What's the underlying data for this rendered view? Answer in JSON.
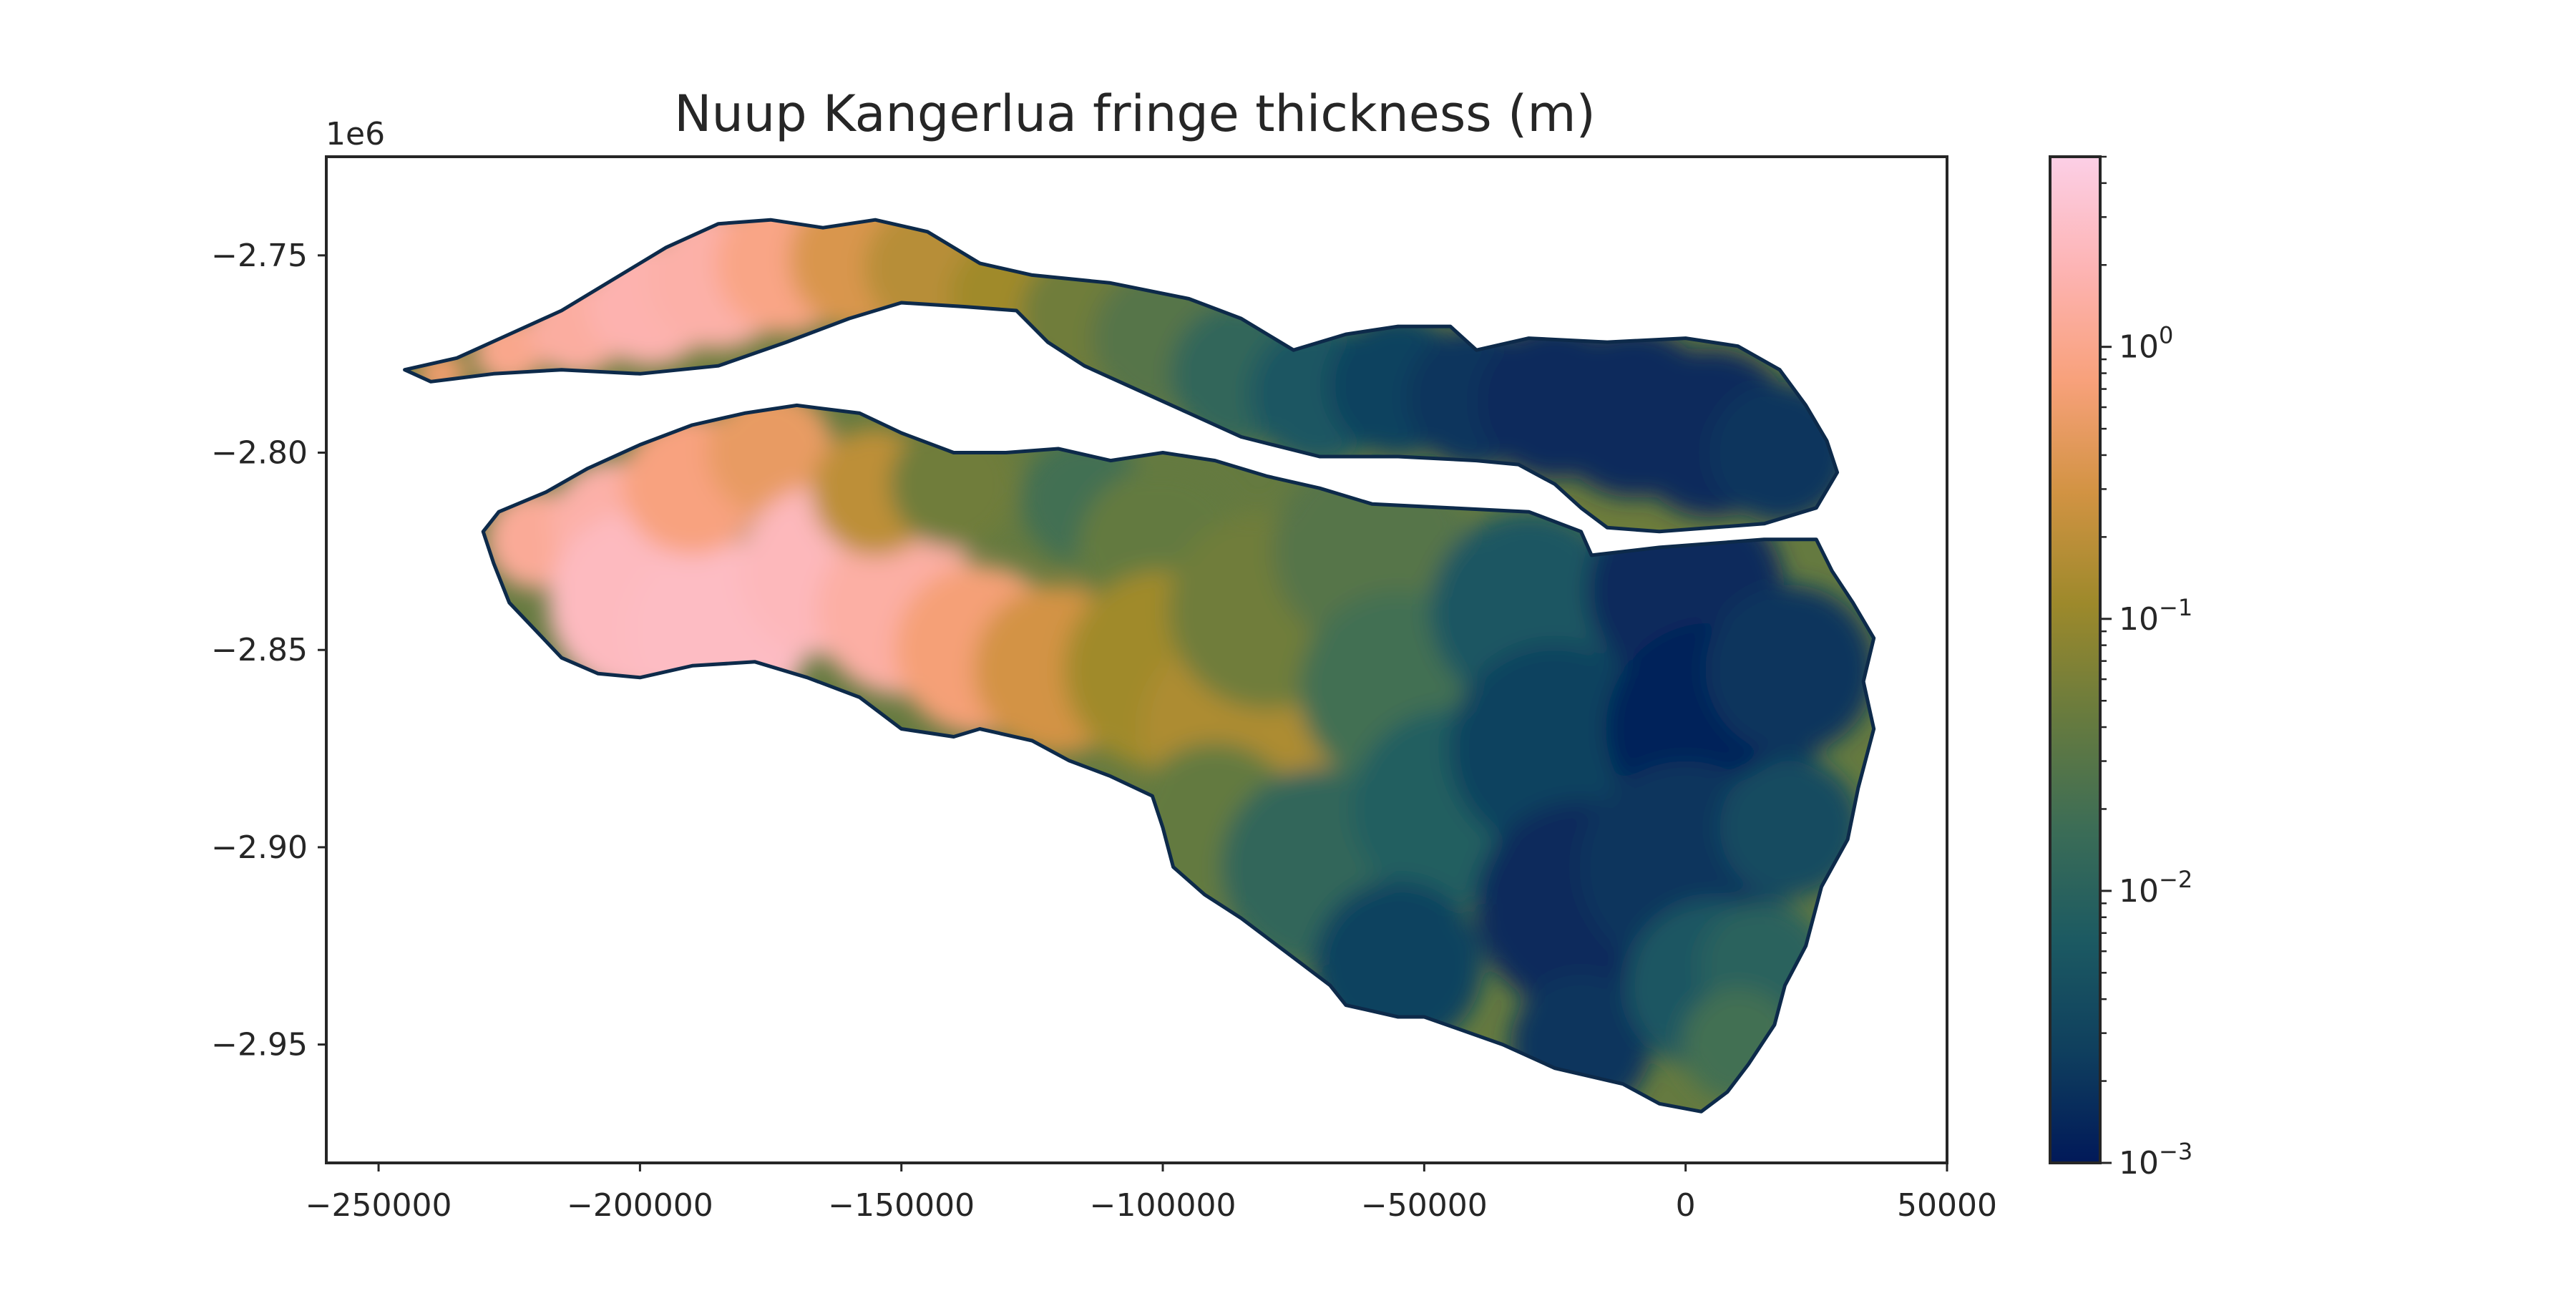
{
  "chart_data": {
    "type": "heatmap",
    "title": "Nuup Kangerlua fringe thickness (m)",
    "xlabel": "",
    "ylabel": "",
    "xlim": [
      -260000,
      50000
    ],
    "ylim": [
      -2980000,
      -2725000
    ],
    "y_offset_label": "1e6",
    "x_ticks": [
      {
        "value": -250000,
        "label": "−250000"
      },
      {
        "value": -200000,
        "label": "−200000"
      },
      {
        "value": -150000,
        "label": "−150000"
      },
      {
        "value": -100000,
        "label": "−100000"
      },
      {
        "value": -50000,
        "label": "−50000"
      },
      {
        "value": 0,
        "label": "0"
      },
      {
        "value": 50000,
        "label": "50000"
      }
    ],
    "y_ticks": [
      {
        "value": -2750000,
        "label": "−2.75"
      },
      {
        "value": -2800000,
        "label": "−2.80"
      },
      {
        "value": -2850000,
        "label": "−2.85"
      },
      {
        "value": -2900000,
        "label": "−2.90"
      },
      {
        "value": -2950000,
        "label": "−2.95"
      }
    ],
    "grid": false,
    "colorbar": {
      "scale": "log",
      "range": [
        0.001,
        5
      ],
      "ticks": [
        {
          "value": 0.001,
          "base": "10",
          "exp": "−3"
        },
        {
          "value": 0.01,
          "base": "10",
          "exp": "−2"
        },
        {
          "value": 0.1,
          "base": "10",
          "exp": "−1"
        },
        {
          "value": 1,
          "base": "10",
          "exp": "0"
        }
      ],
      "colormap": "batlow",
      "colors": [
        "#011959",
        "#0f3f5e",
        "#1c5a62",
        "#3c6d56",
        "#687b3e",
        "#9d892b",
        "#d29343",
        "#f8a17b",
        "#fdb4b4",
        "#fccfe6"
      ]
    },
    "regions": [
      {
        "name": "northern-branch",
        "outline": [
          [
            -245000,
            -2779000
          ],
          [
            -235000,
            -2776000
          ],
          [
            -225000,
            -2770000
          ],
          [
            -215000,
            -2764000
          ],
          [
            -205000,
            -2756000
          ],
          [
            -195000,
            -2748000
          ],
          [
            -185000,
            -2742000
          ],
          [
            -175000,
            -2741000
          ],
          [
            -165000,
            -2743000
          ],
          [
            -155000,
            -2741000
          ],
          [
            -145000,
            -2744000
          ],
          [
            -135000,
            -2752000
          ],
          [
            -125000,
            -2755000
          ],
          [
            -110000,
            -2757000
          ],
          [
            -95000,
            -2761000
          ],
          [
            -85000,
            -2766000
          ],
          [
            -75000,
            -2774000
          ],
          [
            -65000,
            -2770000
          ],
          [
            -55000,
            -2768000
          ],
          [
            -45000,
            -2768000
          ],
          [
            -40000,
            -2774000
          ],
          [
            -30000,
            -2771000
          ],
          [
            -15000,
            -2772000
          ],
          [
            0,
            -2771000
          ],
          [
            10000,
            -2773000
          ],
          [
            18000,
            -2779000
          ],
          [
            23000,
            -2788000
          ],
          [
            27000,
            -2797000
          ],
          [
            29000,
            -2805000
          ],
          [
            25000,
            -2814000
          ],
          [
            15000,
            -2818000
          ],
          [
            5000,
            -2819000
          ],
          [
            -5000,
            -2820000
          ],
          [
            -15000,
            -2819000
          ],
          [
            -20000,
            -2814000
          ],
          [
            -25000,
            -2808000
          ],
          [
            -32000,
            -2803000
          ],
          [
            -40000,
            -2802000
          ],
          [
            -55000,
            -2801000
          ],
          [
            -70000,
            -2801000
          ],
          [
            -85000,
            -2796000
          ],
          [
            -95000,
            -2790000
          ],
          [
            -105000,
            -2784000
          ],
          [
            -115000,
            -2778000
          ],
          [
            -122000,
            -2772000
          ],
          [
            -128000,
            -2764000
          ],
          [
            -138000,
            -2763000
          ],
          [
            -150000,
            -2762000
          ],
          [
            -160000,
            -2766000
          ],
          [
            -172000,
            -2772000
          ],
          [
            -185000,
            -2778000
          ],
          [
            -200000,
            -2780000
          ],
          [
            -215000,
            -2779000
          ],
          [
            -228000,
            -2780000
          ],
          [
            -240000,
            -2782000
          ]
        ],
        "samples": [
          {
            "x": -238000,
            "y": -2780000,
            "v": 0.6,
            "r": 3500
          },
          {
            "x": -225000,
            "y": -2774000,
            "v": 1.0,
            "r": 5000
          },
          {
            "x": -212000,
            "y": -2768000,
            "v": 1.4,
            "r": 7000
          },
          {
            "x": -198000,
            "y": -2762000,
            "v": 1.8,
            "r": 9000
          },
          {
            "x": -185000,
            "y": -2756000,
            "v": 1.6,
            "r": 10000
          },
          {
            "x": -172000,
            "y": -2752000,
            "v": 0.9,
            "r": 10000
          },
          {
            "x": -158000,
            "y": -2751000,
            "v": 0.35,
            "r": 10000
          },
          {
            "x": -145000,
            "y": -2753000,
            "v": 0.18,
            "r": 9000
          },
          {
            "x": -130000,
            "y": -2760000,
            "v": 0.12,
            "r": 8000
          },
          {
            "x": -115000,
            "y": -2765000,
            "v": 0.05,
            "r": 9000
          },
          {
            "x": -100000,
            "y": -2771000,
            "v": 0.03,
            "r": 10000
          },
          {
            "x": -85000,
            "y": -2780000,
            "v": 0.012,
            "r": 10000
          },
          {
            "x": -70000,
            "y": -2785000,
            "v": 0.006,
            "r": 10000
          },
          {
            "x": -55000,
            "y": -2783000,
            "v": 0.003,
            "r": 10000
          },
          {
            "x": -40000,
            "y": -2786000,
            "v": 0.002,
            "r": 10000
          },
          {
            "x": -25000,
            "y": -2787000,
            "v": 0.0015,
            "r": 11000
          },
          {
            "x": -10000,
            "y": -2790000,
            "v": 0.0015,
            "r": 12000
          },
          {
            "x": 5000,
            "y": -2795000,
            "v": 0.0015,
            "r": 12000
          },
          {
            "x": 18000,
            "y": -2800000,
            "v": 0.002,
            "r": 10000
          }
        ]
      },
      {
        "name": "southern-branch",
        "outline": [
          [
            -227000,
            -2815000
          ],
          [
            -218000,
            -2810000
          ],
          [
            -210000,
            -2804000
          ],
          [
            -200000,
            -2798000
          ],
          [
            -190000,
            -2793000
          ],
          [
            -180000,
            -2790000
          ],
          [
            -170000,
            -2788000
          ],
          [
            -158000,
            -2790000
          ],
          [
            -150000,
            -2795000
          ],
          [
            -140000,
            -2800000
          ],
          [
            -130000,
            -2800000
          ],
          [
            -120000,
            -2799000
          ],
          [
            -110000,
            -2802000
          ],
          [
            -100000,
            -2800000
          ],
          [
            -90000,
            -2802000
          ],
          [
            -80000,
            -2806000
          ],
          [
            -70000,
            -2809000
          ],
          [
            -60000,
            -2813000
          ],
          [
            -45000,
            -2814000
          ],
          [
            -30000,
            -2815000
          ],
          [
            -20000,
            -2820000
          ],
          [
            -18000,
            -2826000
          ],
          [
            -5000,
            -2824000
          ],
          [
            15000,
            -2822000
          ],
          [
            25000,
            -2822000
          ],
          [
            28000,
            -2830000
          ],
          [
            32000,
            -2838000
          ],
          [
            36000,
            -2847000
          ],
          [
            34000,
            -2858000
          ],
          [
            36000,
            -2870000
          ],
          [
            33000,
            -2885000
          ],
          [
            31000,
            -2898000
          ],
          [
            26000,
            -2910000
          ],
          [
            23000,
            -2925000
          ],
          [
            19000,
            -2935000
          ],
          [
            17000,
            -2945000
          ],
          [
            12000,
            -2955000
          ],
          [
            8000,
            -2962000
          ],
          [
            3000,
            -2967000
          ],
          [
            -5000,
            -2965000
          ],
          [
            -12000,
            -2960000
          ],
          [
            -25000,
            -2956000
          ],
          [
            -35000,
            -2950000
          ],
          [
            -50000,
            -2943000
          ],
          [
            -55000,
            -2943000
          ],
          [
            -65000,
            -2940000
          ],
          [
            -68000,
            -2935000
          ],
          [
            -75000,
            -2928000
          ],
          [
            -85000,
            -2918000
          ],
          [
            -92000,
            -2912000
          ],
          [
            -98000,
            -2905000
          ],
          [
            -100000,
            -2895000
          ],
          [
            -102000,
            -2887000
          ],
          [
            -110000,
            -2882000
          ],
          [
            -118000,
            -2878000
          ],
          [
            -125000,
            -2873000
          ],
          [
            -135000,
            -2870000
          ],
          [
            -140000,
            -2872000
          ],
          [
            -150000,
            -2870000
          ],
          [
            -158000,
            -2862000
          ],
          [
            -168000,
            -2857000
          ],
          [
            -178000,
            -2853000
          ],
          [
            -190000,
            -2854000
          ],
          [
            -200000,
            -2857000
          ],
          [
            -208000,
            -2856000
          ],
          [
            -215000,
            -2852000
          ],
          [
            -220000,
            -2845000
          ],
          [
            -225000,
            -2838000
          ],
          [
            -228000,
            -2828000
          ],
          [
            -230000,
            -2820000
          ]
        ],
        "samples": [
          {
            "x": -220000,
            "y": -2822000,
            "v": 1.2,
            "r": 7000
          },
          {
            "x": -205000,
            "y": -2818000,
            "v": 1.6,
            "r": 9000
          },
          {
            "x": -200000,
            "y": -2838000,
            "v": 2.4,
            "r": 13000
          },
          {
            "x": -185000,
            "y": -2845000,
            "v": 2.6,
            "r": 13000
          },
          {
            "x": -190000,
            "y": -2808000,
            "v": 0.8,
            "r": 10000
          },
          {
            "x": -175000,
            "y": -2800000,
            "v": 0.5,
            "r": 9000
          },
          {
            "x": -165000,
            "y": -2830000,
            "v": 2.2,
            "r": 12000
          },
          {
            "x": -150000,
            "y": -2840000,
            "v": 1.5,
            "r": 12000
          },
          {
            "x": -155000,
            "y": -2810000,
            "v": 0.2,
            "r": 9000
          },
          {
            "x": -140000,
            "y": -2808000,
            "v": 0.05,
            "r": 9000
          },
          {
            "x": -135000,
            "y": -2850000,
            "v": 0.7,
            "r": 12000
          },
          {
            "x": -120000,
            "y": -2855000,
            "v": 0.3,
            "r": 12000
          },
          {
            "x": -115000,
            "y": -2812000,
            "v": 0.02,
            "r": 9000
          },
          {
            "x": -100000,
            "y": -2825000,
            "v": 0.04,
            "r": 12000
          },
          {
            "x": -100000,
            "y": -2855000,
            "v": 0.12,
            "r": 14000
          },
          {
            "x": -85000,
            "y": -2870000,
            "v": 0.15,
            "r": 14000
          },
          {
            "x": -80000,
            "y": -2840000,
            "v": 0.05,
            "r": 14000
          },
          {
            "x": -90000,
            "y": -2895000,
            "v": 0.04,
            "r": 12000
          },
          {
            "x": -70000,
            "y": -2905000,
            "v": 0.012,
            "r": 14000
          },
          {
            "x": -60000,
            "y": -2825000,
            "v": 0.03,
            "r": 14000
          },
          {
            "x": -55000,
            "y": -2860000,
            "v": 0.02,
            "r": 14000
          },
          {
            "x": -45000,
            "y": -2890000,
            "v": 0.008,
            "r": 14000
          },
          {
            "x": -55000,
            "y": -2930000,
            "v": 0.003,
            "r": 12000
          },
          {
            "x": -30000,
            "y": -2840000,
            "v": 0.006,
            "r": 14000
          },
          {
            "x": -25000,
            "y": -2875000,
            "v": 0.003,
            "r": 15000
          },
          {
            "x": -20000,
            "y": -2915000,
            "v": 0.0015,
            "r": 15000
          },
          {
            "x": -20000,
            "y": -2950000,
            "v": 0.002,
            "r": 10000
          },
          {
            "x": 0,
            "y": -2835000,
            "v": 0.0015,
            "r": 14000
          },
          {
            "x": 5000,
            "y": -2870000,
            "v": 0.0012,
            "r": 15000
          },
          {
            "x": 0,
            "y": -2905000,
            "v": 0.002,
            "r": 15000
          },
          {
            "x": 5000,
            "y": -2935000,
            "v": 0.006,
            "r": 12000
          },
          {
            "x": 20000,
            "y": -2855000,
            "v": 0.002,
            "r": 12000
          },
          {
            "x": 20000,
            "y": -2895000,
            "v": 0.004,
            "r": 10000
          },
          {
            "x": 15000,
            "y": -2930000,
            "v": 0.01,
            "r": 9000
          },
          {
            "x": 10000,
            "y": -2950000,
            "v": 0.02,
            "r": 8000
          }
        ]
      }
    ]
  }
}
